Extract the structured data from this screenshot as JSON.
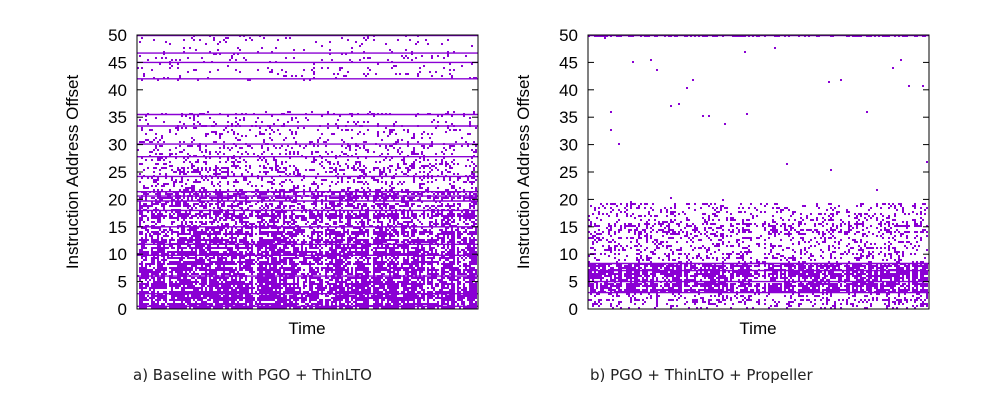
{
  "colors": {
    "mark": "#8a00d4",
    "axis": "#000000",
    "background": "#ffffff"
  },
  "chart_data": [
    {
      "type": "scatter",
      "title": "",
      "xlabel": "Time",
      "ylabel": "Instruction Address Offset",
      "ylim": [
        0,
        50
      ],
      "yticks": [
        "0",
        "5",
        "10",
        "15",
        "20",
        "25",
        "30",
        "35",
        "40",
        "45",
        "50"
      ],
      "grid": false,
      "caption": "a) Baseline with PGO + ThinLTO",
      "density_profile": [
        {
          "from": 0,
          "to": 11,
          "density": 0.92
        },
        {
          "from": 11,
          "to": 17,
          "density": 0.72
        },
        {
          "from": 17,
          "to": 22,
          "density": 0.6
        },
        {
          "from": 22,
          "to": 27,
          "density": 0.32
        },
        {
          "from": 27,
          "to": 31,
          "density": 0.22
        },
        {
          "from": 31,
          "to": 36,
          "density": 0.14
        },
        {
          "from": 36,
          "to": 41.5,
          "density": 0.0
        },
        {
          "from": 41.5,
          "to": 47.5,
          "density": 0.08
        },
        {
          "from": 47.5,
          "to": 50,
          "density": 0.05
        }
      ],
      "solid_bands": [
        0.5,
        2.8,
        6.0,
        9.8,
        11.8,
        15.0,
        18.0,
        19.7,
        20.6,
        21.4,
        24.2,
        27.8,
        30.1,
        33.4,
        35.5,
        42.0,
        45.0,
        46.7,
        49.9
      ]
    },
    {
      "type": "scatter",
      "title": "",
      "xlabel": "Time",
      "ylabel": "Instruction Address Offset",
      "ylim": [
        0,
        50
      ],
      "yticks": [
        "0",
        "5",
        "10",
        "15",
        "20",
        "25",
        "30",
        "35",
        "40",
        "45",
        "50"
      ],
      "grid": false,
      "caption": "b) PGO + ThinLTO + Propeller",
      "density_profile": [
        {
          "from": 0,
          "to": 3,
          "density": 0.35
        },
        {
          "from": 3,
          "to": 8.5,
          "density": 0.97
        },
        {
          "from": 8.5,
          "to": 12.5,
          "density": 0.3
        },
        {
          "from": 12.5,
          "to": 16,
          "density": 0.38
        },
        {
          "from": 16,
          "to": 19.5,
          "density": 0.25
        },
        {
          "from": 19.5,
          "to": 49.5,
          "density": 0.003
        },
        {
          "from": 49.5,
          "to": 50,
          "density": 0.6
        }
      ],
      "solid_bands": [
        3.0,
        5.0,
        7.0,
        8.3,
        49.9
      ]
    }
  ]
}
